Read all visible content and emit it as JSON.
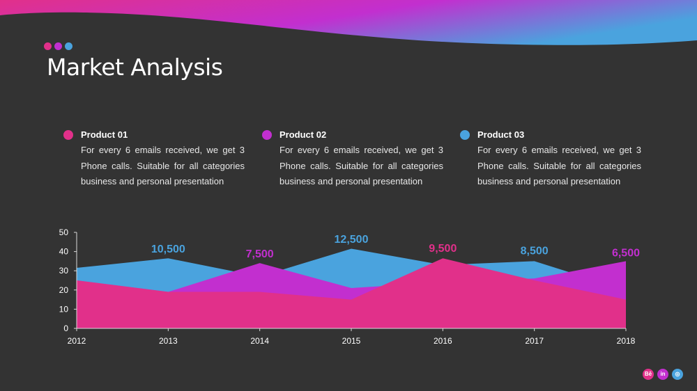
{
  "slide": {
    "title": "Market Analysis",
    "colors": {
      "pink": "#e1308a",
      "purple": "#c22fcf",
      "blue": "#4aa3de",
      "background": "#333333"
    }
  },
  "products": [
    {
      "name": "Product 01",
      "description": "For every 6 emails received, we get 3 Phone calls. Suitable for all categories business and personal presentation",
      "color": "#e1308a"
    },
    {
      "name": "Product 02",
      "description": "For every 6 emails received, we get 3 Phone calls. Suitable for all categories business and personal presentation",
      "color": "#c22fcf"
    },
    {
      "name": "Product 03",
      "description": "For every 6 emails received, we get 3 Phone calls. Suitable for all categories business and personal presentation",
      "color": "#4aa3de"
    }
  ],
  "social_icons": [
    {
      "icon": "behance-icon",
      "text": "Bē",
      "color": "#e1308a"
    },
    {
      "icon": "linkedin-icon",
      "text": "in",
      "color": "#c22fcf"
    },
    {
      "icon": "dribbble-icon",
      "text": "◎",
      "color": "#4aa3de"
    }
  ],
  "chart_data": {
    "type": "area",
    "x": [
      "2012",
      "2013",
      "2014",
      "2015",
      "2016",
      "2017",
      "2018"
    ],
    "ylim": [
      0,
      50
    ],
    "yticks": [
      0,
      10,
      20,
      30,
      40,
      50
    ],
    "grid": false,
    "legend": "none",
    "series": [
      {
        "values": [
          31.5,
          36.5,
          27,
          41.5,
          33,
          35,
          20
        ],
        "color": "#4aa3de"
      },
      {
        "values": [
          25,
          19,
          34,
          21,
          24,
          26,
          35
        ],
        "color": "#c22fcf"
      },
      {
        "values": [
          25,
          19,
          19,
          15,
          36.5,
          25,
          15
        ],
        "color": "#e1308a"
      }
    ],
    "annotations": [
      {
        "x": "2013",
        "text": "10,500",
        "color": "#4aa3de"
      },
      {
        "x": "2014",
        "text": "7,500",
        "color": "#c22fcf"
      },
      {
        "x": "2015",
        "text": "12,500",
        "color": "#4aa3de"
      },
      {
        "x": "2016",
        "text": "9,500",
        "color": "#e1308a"
      },
      {
        "x": "2017",
        "text": "8,500",
        "color": "#4aa3de"
      },
      {
        "x": "2018",
        "text": "6,500",
        "color": "#c22fcf"
      }
    ]
  }
}
